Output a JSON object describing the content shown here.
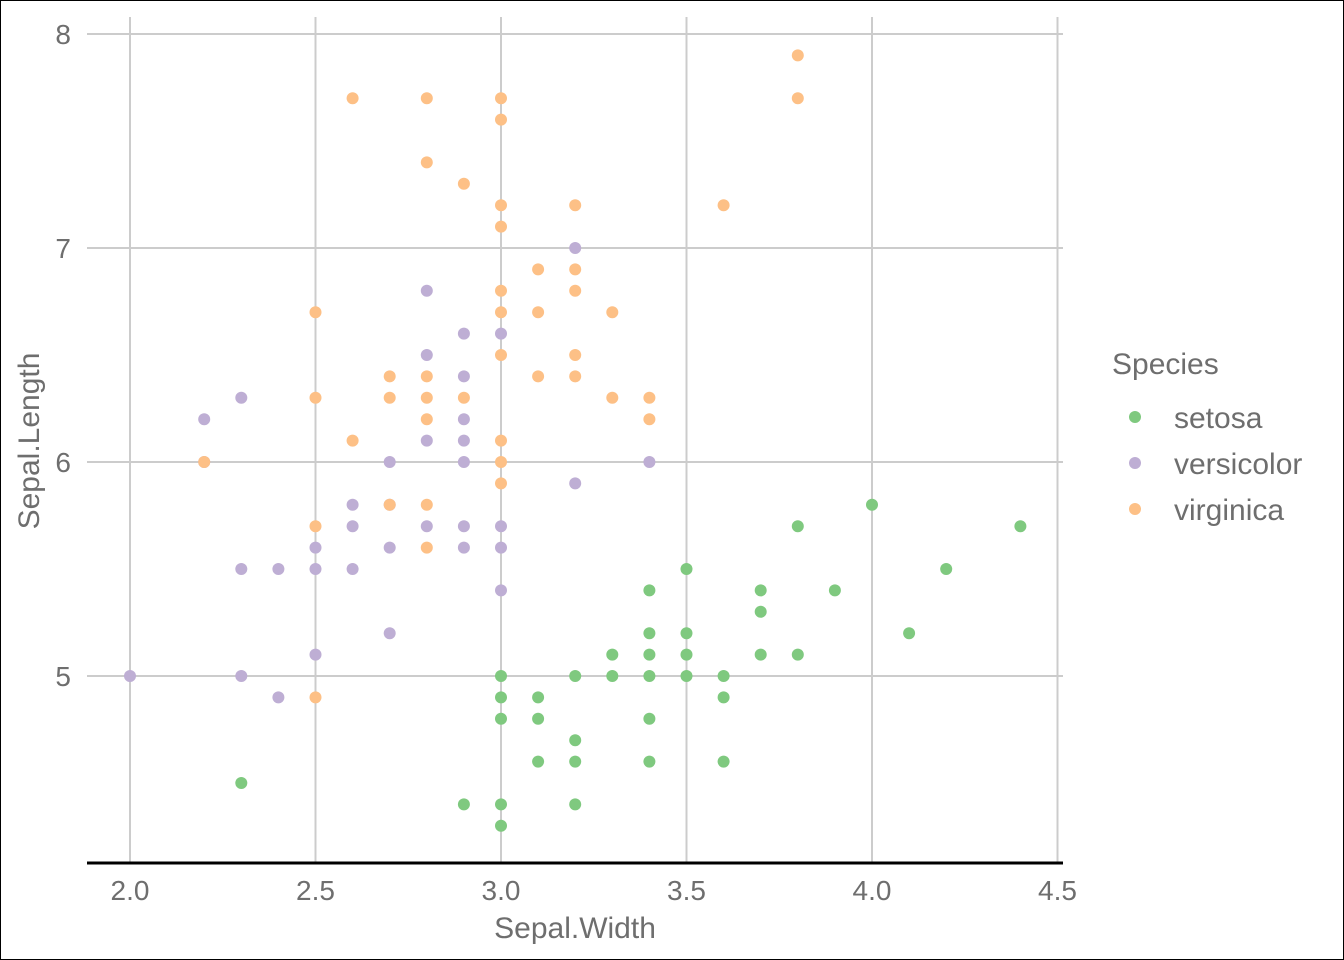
{
  "chart_data": {
    "type": "scatter",
    "title": "",
    "xlabel": "Sepal.Width",
    "ylabel": "Sepal.Length",
    "xlim": [
      2.0,
      4.5
    ],
    "ylim": [
      4.25,
      8.0
    ],
    "x_ticks": [
      "2.0",
      "2.5",
      "3.0",
      "3.5",
      "4.0",
      "4.5"
    ],
    "y_ticks": [
      "5",
      "6",
      "7",
      "8"
    ],
    "grid": true,
    "legend": {
      "title": "Species",
      "position": "right"
    },
    "series": [
      {
        "name": "setosa",
        "color": "#7fc97f",
        "points": [
          [
            2.3,
            4.5
          ],
          [
            2.9,
            4.4
          ],
          [
            3.0,
            4.4
          ],
          [
            3.0,
            4.3
          ],
          [
            3.2,
            4.4
          ],
          [
            3.0,
            5.0
          ],
          [
            3.0,
            4.9
          ],
          [
            3.0,
            4.8
          ],
          [
            3.1,
            4.9
          ],
          [
            3.1,
            4.8
          ],
          [
            3.1,
            4.6
          ],
          [
            3.2,
            4.7
          ],
          [
            3.2,
            4.6
          ],
          [
            3.2,
            5.0
          ],
          [
            3.3,
            5.0
          ],
          [
            3.3,
            5.1
          ],
          [
            3.4,
            5.4
          ],
          [
            3.4,
            5.2
          ],
          [
            3.4,
            5.1
          ],
          [
            3.4,
            5.0
          ],
          [
            3.4,
            4.8
          ],
          [
            3.4,
            4.6
          ],
          [
            3.5,
            5.5
          ],
          [
            3.5,
            5.2
          ],
          [
            3.5,
            5.1
          ],
          [
            3.5,
            5.0
          ],
          [
            3.6,
            5.0
          ],
          [
            3.6,
            4.9
          ],
          [
            3.6,
            4.6
          ],
          [
            3.7,
            5.4
          ],
          [
            3.7,
            5.3
          ],
          [
            3.7,
            5.1
          ],
          [
            3.8,
            5.7
          ],
          [
            3.8,
            5.1
          ],
          [
            3.9,
            5.4
          ],
          [
            4.0,
            5.8
          ],
          [
            4.1,
            5.2
          ],
          [
            4.2,
            5.5
          ],
          [
            4.4,
            5.7
          ]
        ]
      },
      {
        "name": "versicolor",
        "color": "#beaed4",
        "points": [
          [
            2.0,
            5.0
          ],
          [
            2.2,
            6.2
          ],
          [
            2.2,
            6.0
          ],
          [
            2.3,
            6.3
          ],
          [
            2.3,
            5.5
          ],
          [
            2.3,
            5.0
          ],
          [
            2.4,
            5.5
          ],
          [
            2.4,
            4.9
          ],
          [
            2.5,
            5.6
          ],
          [
            2.5,
            5.5
          ],
          [
            2.5,
            5.1
          ],
          [
            2.6,
            5.8
          ],
          [
            2.6,
            5.7
          ],
          [
            2.6,
            5.5
          ],
          [
            2.7,
            6.0
          ],
          [
            2.7,
            5.8
          ],
          [
            2.7,
            5.6
          ],
          [
            2.7,
            5.2
          ],
          [
            2.8,
            6.8
          ],
          [
            2.8,
            6.5
          ],
          [
            2.8,
            6.1
          ],
          [
            2.8,
            5.7
          ],
          [
            2.9,
            6.6
          ],
          [
            2.9,
            6.4
          ],
          [
            2.9,
            6.2
          ],
          [
            2.9,
            6.1
          ],
          [
            2.9,
            6.0
          ],
          [
            2.9,
            5.7
          ],
          [
            2.9,
            5.6
          ],
          [
            3.0,
            6.6
          ],
          [
            3.0,
            5.7
          ],
          [
            3.0,
            5.6
          ],
          [
            3.0,
            5.4
          ],
          [
            3.2,
            7.0
          ],
          [
            3.2,
            5.9
          ],
          [
            3.4,
            6.0
          ]
        ]
      },
      {
        "name": "virginica",
        "color": "#fdc086",
        "points": [
          [
            2.2,
            6.0
          ],
          [
            2.5,
            6.7
          ],
          [
            2.5,
            6.3
          ],
          [
            2.5,
            5.7
          ],
          [
            2.5,
            4.9
          ],
          [
            2.6,
            7.7
          ],
          [
            2.6,
            6.1
          ],
          [
            2.7,
            6.4
          ],
          [
            2.7,
            6.3
          ],
          [
            2.7,
            5.8
          ],
          [
            2.8,
            7.7
          ],
          [
            2.8,
            7.4
          ],
          [
            2.8,
            6.4
          ],
          [
            2.8,
            6.3
          ],
          [
            2.8,
            6.2
          ],
          [
            2.8,
            5.8
          ],
          [
            2.8,
            5.6
          ],
          [
            2.9,
            7.3
          ],
          [
            2.9,
            6.3
          ],
          [
            3.0,
            7.7
          ],
          [
            3.0,
            7.6
          ],
          [
            3.0,
            7.2
          ],
          [
            3.0,
            7.1
          ],
          [
            3.0,
            6.8
          ],
          [
            3.0,
            6.7
          ],
          [
            3.0,
            6.5
          ],
          [
            3.0,
            6.1
          ],
          [
            3.0,
            6.0
          ],
          [
            3.0,
            5.9
          ],
          [
            3.1,
            6.9
          ],
          [
            3.1,
            6.7
          ],
          [
            3.1,
            6.4
          ],
          [
            3.2,
            7.2
          ],
          [
            3.2,
            6.9
          ],
          [
            3.2,
            6.8
          ],
          [
            3.2,
            6.5
          ],
          [
            3.2,
            6.4
          ],
          [
            3.3,
            6.7
          ],
          [
            3.3,
            6.3
          ],
          [
            3.4,
            6.3
          ],
          [
            3.4,
            6.2
          ],
          [
            3.6,
            7.2
          ],
          [
            3.8,
            7.9
          ],
          [
            3.8,
            7.7
          ]
        ]
      }
    ]
  }
}
